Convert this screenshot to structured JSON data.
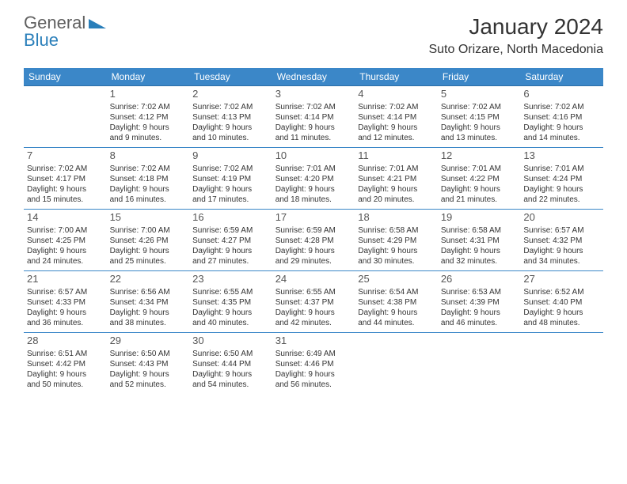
{
  "colors": {
    "header_bg": "#3b87c8",
    "header_text": "#ffffff",
    "cell_border": "#3b87c8",
    "body_text": "#333333",
    "daynum_text": "#555555",
    "logo_gray": "#606060",
    "logo_blue": "#2a7fba",
    "background": "#ffffff"
  },
  "typography": {
    "title_fontsize": 28,
    "location_fontsize": 16,
    "header_fontsize": 12,
    "daynum_fontsize": 13,
    "cell_fontsize": 10,
    "logo_fontsize": 22
  },
  "logo": {
    "word1": "General",
    "word2": "Blue"
  },
  "title": "January 2024",
  "location": "Suto Orizare, North Macedonia",
  "weekdays": [
    "Sunday",
    "Monday",
    "Tuesday",
    "Wednesday",
    "Thursday",
    "Friday",
    "Saturday"
  ],
  "weeks": [
    [
      null,
      {
        "n": "1",
        "sr": "Sunrise: 7:02 AM",
        "ss": "Sunset: 4:12 PM",
        "d1": "Daylight: 9 hours",
        "d2": "and 9 minutes."
      },
      {
        "n": "2",
        "sr": "Sunrise: 7:02 AM",
        "ss": "Sunset: 4:13 PM",
        "d1": "Daylight: 9 hours",
        "d2": "and 10 minutes."
      },
      {
        "n": "3",
        "sr": "Sunrise: 7:02 AM",
        "ss": "Sunset: 4:14 PM",
        "d1": "Daylight: 9 hours",
        "d2": "and 11 minutes."
      },
      {
        "n": "4",
        "sr": "Sunrise: 7:02 AM",
        "ss": "Sunset: 4:14 PM",
        "d1": "Daylight: 9 hours",
        "d2": "and 12 minutes."
      },
      {
        "n": "5",
        "sr": "Sunrise: 7:02 AM",
        "ss": "Sunset: 4:15 PM",
        "d1": "Daylight: 9 hours",
        "d2": "and 13 minutes."
      },
      {
        "n": "6",
        "sr": "Sunrise: 7:02 AM",
        "ss": "Sunset: 4:16 PM",
        "d1": "Daylight: 9 hours",
        "d2": "and 14 minutes."
      }
    ],
    [
      {
        "n": "7",
        "sr": "Sunrise: 7:02 AM",
        "ss": "Sunset: 4:17 PM",
        "d1": "Daylight: 9 hours",
        "d2": "and 15 minutes."
      },
      {
        "n": "8",
        "sr": "Sunrise: 7:02 AM",
        "ss": "Sunset: 4:18 PM",
        "d1": "Daylight: 9 hours",
        "d2": "and 16 minutes."
      },
      {
        "n": "9",
        "sr": "Sunrise: 7:02 AM",
        "ss": "Sunset: 4:19 PM",
        "d1": "Daylight: 9 hours",
        "d2": "and 17 minutes."
      },
      {
        "n": "10",
        "sr": "Sunrise: 7:01 AM",
        "ss": "Sunset: 4:20 PM",
        "d1": "Daylight: 9 hours",
        "d2": "and 18 minutes."
      },
      {
        "n": "11",
        "sr": "Sunrise: 7:01 AM",
        "ss": "Sunset: 4:21 PM",
        "d1": "Daylight: 9 hours",
        "d2": "and 20 minutes."
      },
      {
        "n": "12",
        "sr": "Sunrise: 7:01 AM",
        "ss": "Sunset: 4:22 PM",
        "d1": "Daylight: 9 hours",
        "d2": "and 21 minutes."
      },
      {
        "n": "13",
        "sr": "Sunrise: 7:01 AM",
        "ss": "Sunset: 4:24 PM",
        "d1": "Daylight: 9 hours",
        "d2": "and 22 minutes."
      }
    ],
    [
      {
        "n": "14",
        "sr": "Sunrise: 7:00 AM",
        "ss": "Sunset: 4:25 PM",
        "d1": "Daylight: 9 hours",
        "d2": "and 24 minutes."
      },
      {
        "n": "15",
        "sr": "Sunrise: 7:00 AM",
        "ss": "Sunset: 4:26 PM",
        "d1": "Daylight: 9 hours",
        "d2": "and 25 minutes."
      },
      {
        "n": "16",
        "sr": "Sunrise: 6:59 AM",
        "ss": "Sunset: 4:27 PM",
        "d1": "Daylight: 9 hours",
        "d2": "and 27 minutes."
      },
      {
        "n": "17",
        "sr": "Sunrise: 6:59 AM",
        "ss": "Sunset: 4:28 PM",
        "d1": "Daylight: 9 hours",
        "d2": "and 29 minutes."
      },
      {
        "n": "18",
        "sr": "Sunrise: 6:58 AM",
        "ss": "Sunset: 4:29 PM",
        "d1": "Daylight: 9 hours",
        "d2": "and 30 minutes."
      },
      {
        "n": "19",
        "sr": "Sunrise: 6:58 AM",
        "ss": "Sunset: 4:31 PM",
        "d1": "Daylight: 9 hours",
        "d2": "and 32 minutes."
      },
      {
        "n": "20",
        "sr": "Sunrise: 6:57 AM",
        "ss": "Sunset: 4:32 PM",
        "d1": "Daylight: 9 hours",
        "d2": "and 34 minutes."
      }
    ],
    [
      {
        "n": "21",
        "sr": "Sunrise: 6:57 AM",
        "ss": "Sunset: 4:33 PM",
        "d1": "Daylight: 9 hours",
        "d2": "and 36 minutes."
      },
      {
        "n": "22",
        "sr": "Sunrise: 6:56 AM",
        "ss": "Sunset: 4:34 PM",
        "d1": "Daylight: 9 hours",
        "d2": "and 38 minutes."
      },
      {
        "n": "23",
        "sr": "Sunrise: 6:55 AM",
        "ss": "Sunset: 4:35 PM",
        "d1": "Daylight: 9 hours",
        "d2": "and 40 minutes."
      },
      {
        "n": "24",
        "sr": "Sunrise: 6:55 AM",
        "ss": "Sunset: 4:37 PM",
        "d1": "Daylight: 9 hours",
        "d2": "and 42 minutes."
      },
      {
        "n": "25",
        "sr": "Sunrise: 6:54 AM",
        "ss": "Sunset: 4:38 PM",
        "d1": "Daylight: 9 hours",
        "d2": "and 44 minutes."
      },
      {
        "n": "26",
        "sr": "Sunrise: 6:53 AM",
        "ss": "Sunset: 4:39 PM",
        "d1": "Daylight: 9 hours",
        "d2": "and 46 minutes."
      },
      {
        "n": "27",
        "sr": "Sunrise: 6:52 AM",
        "ss": "Sunset: 4:40 PM",
        "d1": "Daylight: 9 hours",
        "d2": "and 48 minutes."
      }
    ],
    [
      {
        "n": "28",
        "sr": "Sunrise: 6:51 AM",
        "ss": "Sunset: 4:42 PM",
        "d1": "Daylight: 9 hours",
        "d2": "and 50 minutes."
      },
      {
        "n": "29",
        "sr": "Sunrise: 6:50 AM",
        "ss": "Sunset: 4:43 PM",
        "d1": "Daylight: 9 hours",
        "d2": "and 52 minutes."
      },
      {
        "n": "30",
        "sr": "Sunrise: 6:50 AM",
        "ss": "Sunset: 4:44 PM",
        "d1": "Daylight: 9 hours",
        "d2": "and 54 minutes."
      },
      {
        "n": "31",
        "sr": "Sunrise: 6:49 AM",
        "ss": "Sunset: 4:46 PM",
        "d1": "Daylight: 9 hours",
        "d2": "and 56 minutes."
      },
      null,
      null,
      null
    ]
  ]
}
